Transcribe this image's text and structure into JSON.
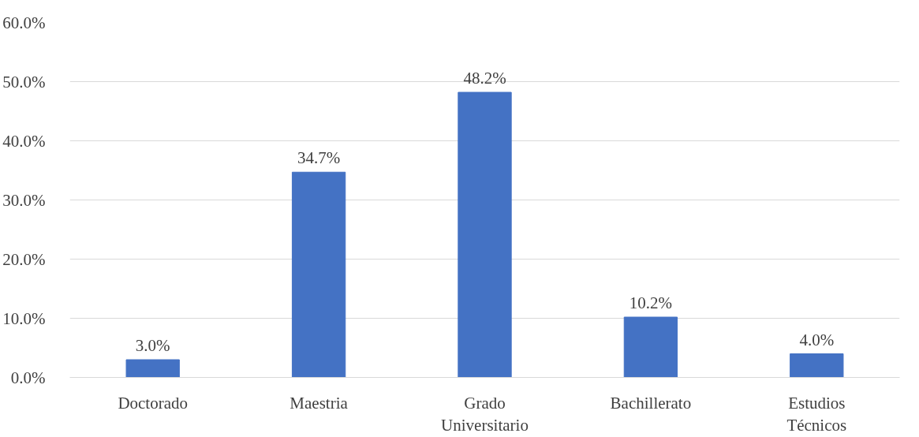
{
  "chart_data": {
    "type": "bar",
    "categories": [
      "Doctorado",
      "Maestria",
      "Grado\nUniversitario",
      "Bachillerato",
      "Estudios\nTécnicos"
    ],
    "values": [
      3.0,
      34.7,
      48.2,
      10.2,
      4.0
    ],
    "color": "#4472c4",
    "value_labels": [
      "3.0%",
      "34.7%",
      "48.2%",
      "10.2%",
      "4.0%"
    ],
    "ylim": [
      0,
      60
    ],
    "yticks": [
      {
        "value": 0,
        "label": "0.0%"
      },
      {
        "value": 10,
        "label": "10.0%"
      },
      {
        "value": 20,
        "label": "20.0%"
      },
      {
        "value": 30,
        "label": "30.0%"
      },
      {
        "value": 40,
        "label": "40.0%"
      },
      {
        "value": 50,
        "label": "50.0%"
      },
      {
        "value": 60,
        "label": "60.0%"
      }
    ],
    "grid": "y"
  }
}
